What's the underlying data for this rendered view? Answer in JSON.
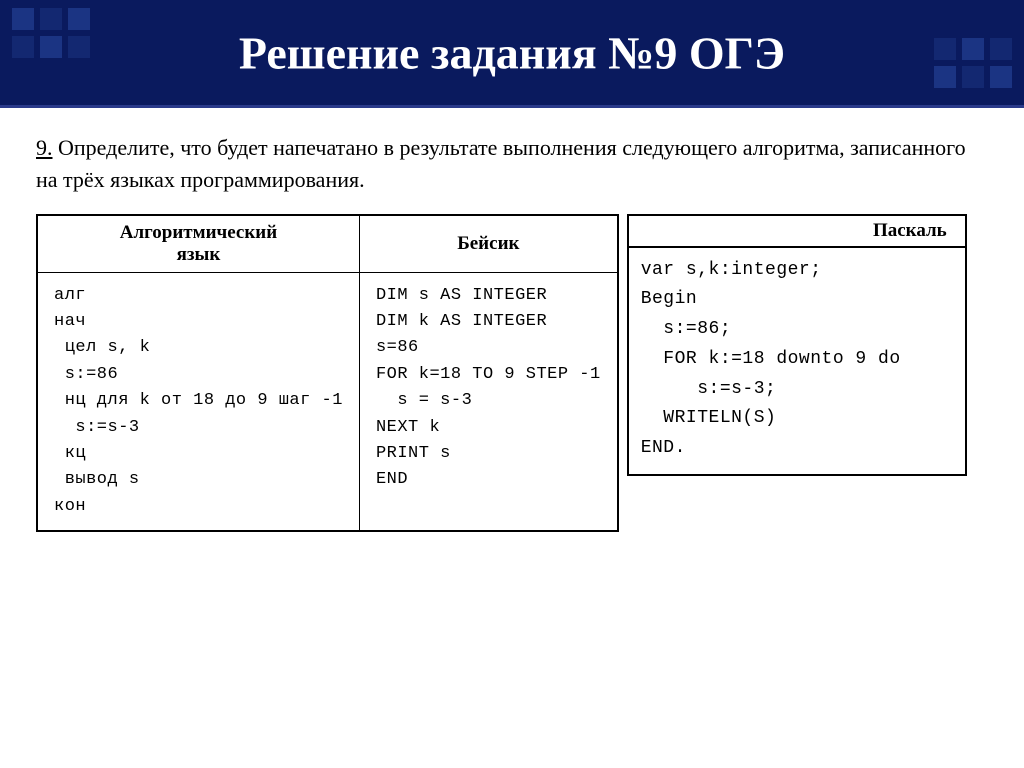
{
  "header": {
    "title": "Решение задания №9 ОГЭ",
    "bg_color": "#0a1a5e",
    "accent_color": "#1e3a8a"
  },
  "question": {
    "number": "9.",
    "text": " Определите, что будет напечатано в результате выполнения следующего алгоритма, записанного на трёх языках программирования."
  },
  "table": {
    "headers": {
      "col1_line1": "Алгоритмический",
      "col1_line2": "язык",
      "col2": "Бейсик",
      "pascal": "Паскаль"
    },
    "algo_code": "алг\nнач\n цел s, k\n s:=86\n нц для k от 18 до 9 шаг -1\n  s:=s-3\n кц\n вывод s\nкон",
    "basic_code": "DIM s AS INTEGER\nDIM k AS INTEGER\ns=86\nFOR k=18 TO 9 STEP -1\n  s = s-3\nNEXT k\nPRINT s\nEND",
    "pascal_code": "var s,k:integer;\nBegin\n  s:=86;\n  FOR k:=18 downto 9 do\n     s:=s-3;\n  WRITELN(S)\nEND."
  }
}
